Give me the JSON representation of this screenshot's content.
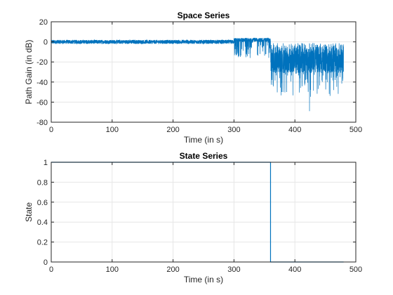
{
  "chart_data": [
    {
      "type": "line",
      "title": "Space Series",
      "xlabel": "Time (in s)",
      "ylabel": "Path Gain (in dB)",
      "xlim": [
        0,
        500
      ],
      "ylim": [
        -80,
        20
      ],
      "xticks": [
        0,
        100,
        200,
        300,
        400,
        500
      ],
      "yticks": [
        20,
        0,
        -20,
        -40,
        -60,
        -80
      ],
      "xtick_labels": [
        "0",
        "100",
        "200",
        "300",
        "400",
        "500"
      ],
      "ytick_labels": [
        "20",
        "0",
        "-20",
        "-40",
        "-60",
        "-80"
      ],
      "grid": true,
      "color": "#0072BD",
      "series": [
        {
          "segments": [
            {
              "x_start": 0,
              "x_end": 300,
              "y_min": -2,
              "y_max": 2,
              "center": 0
            },
            {
              "x_start": 300,
              "x_end": 360,
              "y_min": -15,
              "y_max": 5,
              "center": 0
            },
            {
              "x_start": 360,
              "x_end": 480,
              "y_min": -55,
              "y_max": 0,
              "center": -18
            }
          ],
          "notable_points": [
            {
              "x": 424,
              "y": -69
            }
          ]
        }
      ]
    },
    {
      "type": "line",
      "title": "State Series",
      "xlabel": "Time (in s)",
      "ylabel": "State",
      "xlim": [
        0,
        500
      ],
      "ylim": [
        0,
        1
      ],
      "xticks": [
        0,
        100,
        200,
        300,
        400,
        500
      ],
      "yticks": [
        1,
        0.8,
        0.6,
        0.4,
        0.2,
        0
      ],
      "xtick_labels": [
        "0",
        "100",
        "200",
        "300",
        "400",
        "500"
      ],
      "ytick_labels": [
        "1",
        "0.8",
        "0.6",
        "0.4",
        "0.2",
        "0"
      ],
      "grid": true,
      "color": "#0072BD",
      "series": [
        {
          "x": [
            0,
            360,
            360,
            480
          ],
          "y": [
            1,
            1,
            0,
            0
          ]
        }
      ]
    }
  ]
}
